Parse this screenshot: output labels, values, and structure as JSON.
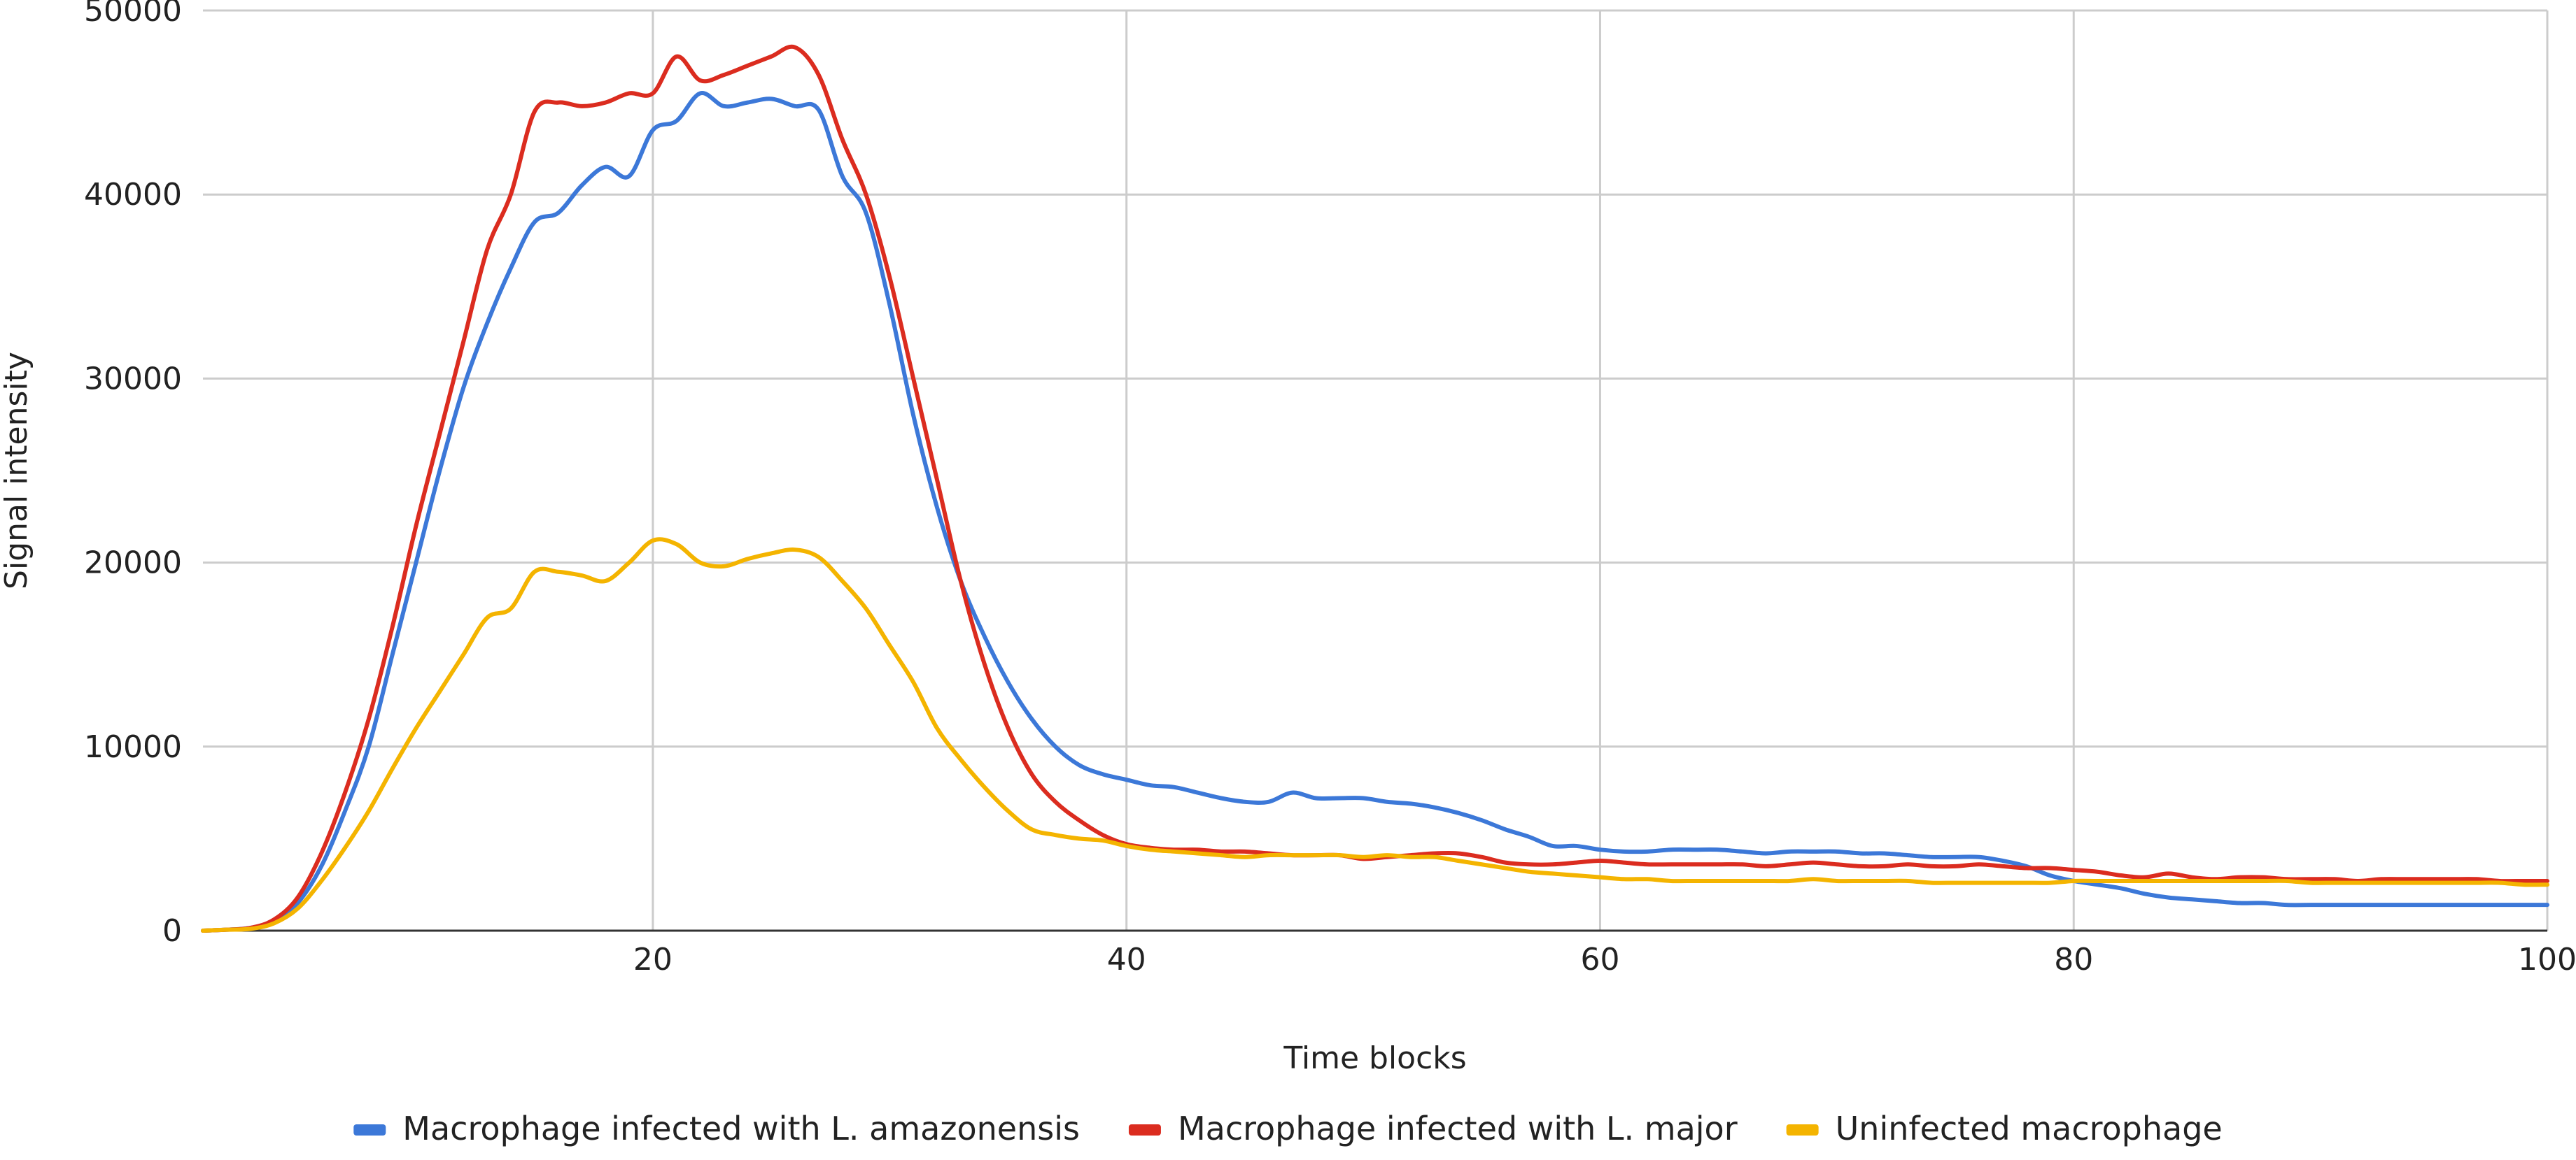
{
  "chart_data": {
    "type": "line",
    "title": "",
    "xlabel": "Time blocks",
    "ylabel": "Signal intensity",
    "xlim": [
      1,
      100
    ],
    "ylim": [
      0,
      50000
    ],
    "x_ticks": [
      20,
      40,
      60,
      80,
      100
    ],
    "y_ticks": [
      0,
      10000,
      20000,
      30000,
      40000,
      50000
    ],
    "grid": true,
    "legend_position": "bottom",
    "series": [
      {
        "name": "Macrophage infected with L. amazonensis",
        "color": "#3c78d8",
        "points": [
          [
            1,
            0
          ],
          [
            2,
            50
          ],
          [
            3,
            150
          ],
          [
            4,
            500
          ],
          [
            5,
            1500
          ],
          [
            6,
            3500
          ],
          [
            7,
            6500
          ],
          [
            8,
            10000
          ],
          [
            9,
            15000
          ],
          [
            10,
            20000
          ],
          [
            11,
            25000
          ],
          [
            12,
            29500
          ],
          [
            13,
            33000
          ],
          [
            14,
            36000
          ],
          [
            15,
            38500
          ],
          [
            16,
            39000
          ],
          [
            17,
            40500
          ],
          [
            18,
            41500
          ],
          [
            19,
            41000
          ],
          [
            20,
            43500
          ],
          [
            21,
            44000
          ],
          [
            22,
            45500
          ],
          [
            23,
            44800
          ],
          [
            24,
            45000
          ],
          [
            25,
            45200
          ],
          [
            26,
            44800
          ],
          [
            27,
            44600
          ],
          [
            28,
            41000
          ],
          [
            29,
            39000
          ],
          [
            30,
            34000
          ],
          [
            31,
            28000
          ],
          [
            32,
            23000
          ],
          [
            33,
            19000
          ],
          [
            34,
            16000
          ],
          [
            35,
            13500
          ],
          [
            36,
            11500
          ],
          [
            37,
            10000
          ],
          [
            38,
            9000
          ],
          [
            39,
            8500
          ],
          [
            40,
            8200
          ],
          [
            41,
            7900
          ],
          [
            42,
            7800
          ],
          [
            43,
            7500
          ],
          [
            44,
            7200
          ],
          [
            45,
            7000
          ],
          [
            46,
            7000
          ],
          [
            47,
            7500
          ],
          [
            48,
            7200
          ],
          [
            49,
            7200
          ],
          [
            50,
            7200
          ],
          [
            51,
            7000
          ],
          [
            52,
            6900
          ],
          [
            53,
            6700
          ],
          [
            54,
            6400
          ],
          [
            55,
            6000
          ],
          [
            56,
            5500
          ],
          [
            57,
            5100
          ],
          [
            58,
            4600
          ],
          [
            59,
            4600
          ],
          [
            60,
            4400
          ],
          [
            61,
            4300
          ],
          [
            62,
            4300
          ],
          [
            63,
            4400
          ],
          [
            64,
            4400
          ],
          [
            65,
            4400
          ],
          [
            66,
            4300
          ],
          [
            67,
            4200
          ],
          [
            68,
            4300
          ],
          [
            69,
            4300
          ],
          [
            70,
            4300
          ],
          [
            71,
            4200
          ],
          [
            72,
            4200
          ],
          [
            73,
            4100
          ],
          [
            74,
            4000
          ],
          [
            75,
            4000
          ],
          [
            76,
            4000
          ],
          [
            77,
            3800
          ],
          [
            78,
            3500
          ],
          [
            79,
            3000
          ],
          [
            80,
            2700
          ],
          [
            81,
            2500
          ],
          [
            82,
            2300
          ],
          [
            83,
            2000
          ],
          [
            84,
            1800
          ],
          [
            85,
            1700
          ],
          [
            86,
            1600
          ],
          [
            87,
            1500
          ],
          [
            88,
            1500
          ],
          [
            89,
            1400
          ],
          [
            90,
            1400
          ],
          [
            91,
            1400
          ],
          [
            92,
            1400
          ],
          [
            93,
            1400
          ],
          [
            94,
            1400
          ],
          [
            95,
            1400
          ],
          [
            96,
            1400
          ],
          [
            97,
            1400
          ],
          [
            98,
            1400
          ],
          [
            99,
            1400
          ],
          [
            100,
            1400
          ]
        ]
      },
      {
        "name": "Macrophage infected with  L. major",
        "color": "#db2c1f",
        "points": [
          [
            1,
            0
          ],
          [
            2,
            50
          ],
          [
            3,
            150
          ],
          [
            4,
            600
          ],
          [
            5,
            1800
          ],
          [
            6,
            4200
          ],
          [
            7,
            7500
          ],
          [
            8,
            11500
          ],
          [
            9,
            16500
          ],
          [
            10,
            22000
          ],
          [
            11,
            27000
          ],
          [
            12,
            32000
          ],
          [
            13,
            37000
          ],
          [
            14,
            40000
          ],
          [
            15,
            44500
          ],
          [
            16,
            45000
          ],
          [
            17,
            44800
          ],
          [
            18,
            45000
          ],
          [
            19,
            45500
          ],
          [
            20,
            45500
          ],
          [
            21,
            47500
          ],
          [
            22,
            46200
          ],
          [
            23,
            46500
          ],
          [
            24,
            47000
          ],
          [
            25,
            47500
          ],
          [
            26,
            48000
          ],
          [
            27,
            46500
          ],
          [
            28,
            43000
          ],
          [
            29,
            40000
          ],
          [
            30,
            35500
          ],
          [
            31,
            30000
          ],
          [
            32,
            24500
          ],
          [
            33,
            19000
          ],
          [
            34,
            14500
          ],
          [
            35,
            11000
          ],
          [
            36,
            8500
          ],
          [
            37,
            7000
          ],
          [
            38,
            6000
          ],
          [
            39,
            5200
          ],
          [
            40,
            4700
          ],
          [
            41,
            4500
          ],
          [
            42,
            4400
          ],
          [
            43,
            4400
          ],
          [
            44,
            4300
          ],
          [
            45,
            4300
          ],
          [
            46,
            4200
          ],
          [
            47,
            4100
          ],
          [
            48,
            4100
          ],
          [
            49,
            4100
          ],
          [
            50,
            3900
          ],
          [
            51,
            4000
          ],
          [
            52,
            4100
          ],
          [
            53,
            4200
          ],
          [
            54,
            4200
          ],
          [
            55,
            4000
          ],
          [
            56,
            3700
          ],
          [
            57,
            3600
          ],
          [
            58,
            3600
          ],
          [
            59,
            3700
          ],
          [
            60,
            3800
          ],
          [
            61,
            3700
          ],
          [
            62,
            3600
          ],
          [
            63,
            3600
          ],
          [
            64,
            3600
          ],
          [
            65,
            3600
          ],
          [
            66,
            3600
          ],
          [
            67,
            3500
          ],
          [
            68,
            3600
          ],
          [
            69,
            3700
          ],
          [
            70,
            3600
          ],
          [
            71,
            3500
          ],
          [
            72,
            3500
          ],
          [
            73,
            3600
          ],
          [
            74,
            3500
          ],
          [
            75,
            3500
          ],
          [
            76,
            3600
          ],
          [
            77,
            3500
          ],
          [
            78,
            3400
          ],
          [
            79,
            3400
          ],
          [
            80,
            3300
          ],
          [
            81,
            3200
          ],
          [
            82,
            3000
          ],
          [
            83,
            2900
          ],
          [
            84,
            3100
          ],
          [
            85,
            2900
          ],
          [
            86,
            2800
          ],
          [
            87,
            2900
          ],
          [
            88,
            2900
          ],
          [
            89,
            2800
          ],
          [
            90,
            2800
          ],
          [
            91,
            2800
          ],
          [
            92,
            2700
          ],
          [
            93,
            2800
          ],
          [
            94,
            2800
          ],
          [
            95,
            2800
          ],
          [
            96,
            2800
          ],
          [
            97,
            2800
          ],
          [
            98,
            2700
          ],
          [
            99,
            2700
          ],
          [
            100,
            2700
          ]
        ]
      },
      {
        "name": "Uninfected macrophage",
        "color": "#f4b400",
        "points": [
          [
            1,
            0
          ],
          [
            2,
            50
          ],
          [
            3,
            100
          ],
          [
            4,
            400
          ],
          [
            5,
            1200
          ],
          [
            6,
            2700
          ],
          [
            7,
            4500
          ],
          [
            8,
            6500
          ],
          [
            9,
            8800
          ],
          [
            10,
            11000
          ],
          [
            11,
            13000
          ],
          [
            12,
            15000
          ],
          [
            13,
            17000
          ],
          [
            14,
            17500
          ],
          [
            15,
            19500
          ],
          [
            16,
            19500
          ],
          [
            17,
            19300
          ],
          [
            18,
            19000
          ],
          [
            19,
            20000
          ],
          [
            20,
            21200
          ],
          [
            21,
            21000
          ],
          [
            22,
            20000
          ],
          [
            23,
            19800
          ],
          [
            24,
            20200
          ],
          [
            25,
            20500
          ],
          [
            26,
            20700
          ],
          [
            27,
            20300
          ],
          [
            28,
            19000
          ],
          [
            29,
            17500
          ],
          [
            30,
            15500
          ],
          [
            31,
            13500
          ],
          [
            32,
            11000
          ],
          [
            33,
            9300
          ],
          [
            34,
            7800
          ],
          [
            35,
            6500
          ],
          [
            36,
            5500
          ],
          [
            37,
            5200
          ],
          [
            38,
            5000
          ],
          [
            39,
            4900
          ],
          [
            40,
            4600
          ],
          [
            41,
            4400
          ],
          [
            42,
            4300
          ],
          [
            43,
            4200
          ],
          [
            44,
            4100
          ],
          [
            45,
            4000
          ],
          [
            46,
            4100
          ],
          [
            47,
            4100
          ],
          [
            48,
            4100
          ],
          [
            49,
            4100
          ],
          [
            50,
            4000
          ],
          [
            51,
            4100
          ],
          [
            52,
            4000
          ],
          [
            53,
            4000
          ],
          [
            54,
            3800
          ],
          [
            55,
            3600
          ],
          [
            56,
            3400
          ],
          [
            57,
            3200
          ],
          [
            58,
            3100
          ],
          [
            59,
            3000
          ],
          [
            60,
            2900
          ],
          [
            61,
            2800
          ],
          [
            62,
            2800
          ],
          [
            63,
            2700
          ],
          [
            64,
            2700
          ],
          [
            65,
            2700
          ],
          [
            66,
            2700
          ],
          [
            67,
            2700
          ],
          [
            68,
            2700
          ],
          [
            69,
            2800
          ],
          [
            70,
            2700
          ],
          [
            71,
            2700
          ],
          [
            72,
            2700
          ],
          [
            73,
            2700
          ],
          [
            74,
            2600
          ],
          [
            75,
            2600
          ],
          [
            76,
            2600
          ],
          [
            77,
            2600
          ],
          [
            78,
            2600
          ],
          [
            79,
            2600
          ],
          [
            80,
            2700
          ],
          [
            81,
            2700
          ],
          [
            82,
            2700
          ],
          [
            83,
            2700
          ],
          [
            84,
            2700
          ],
          [
            85,
            2700
          ],
          [
            86,
            2700
          ],
          [
            87,
            2700
          ],
          [
            88,
            2700
          ],
          [
            89,
            2700
          ],
          [
            90,
            2600
          ],
          [
            91,
            2600
          ],
          [
            92,
            2600
          ],
          [
            93,
            2600
          ],
          [
            94,
            2600
          ],
          [
            95,
            2600
          ],
          [
            96,
            2600
          ],
          [
            97,
            2600
          ],
          [
            98,
            2600
          ],
          [
            99,
            2500
          ],
          [
            100,
            2500
          ]
        ]
      }
    ]
  }
}
